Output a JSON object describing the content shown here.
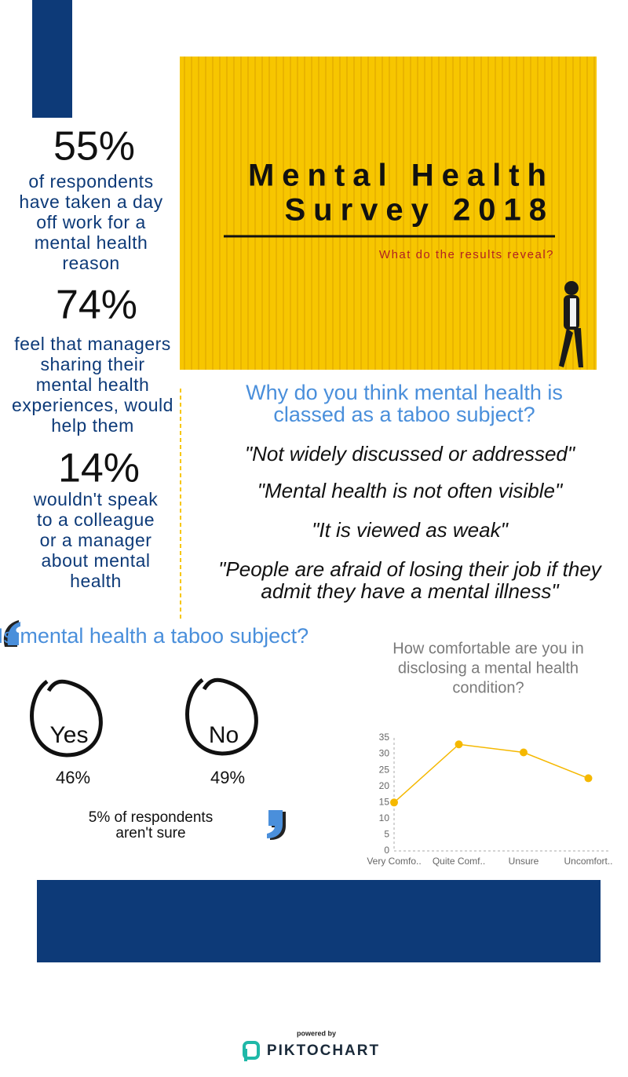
{
  "hero": {
    "title_lines": [
      "Mental Health",
      "Survey 2018"
    ],
    "subtitle": "What do the results reveal?"
  },
  "stats": [
    {
      "figure": "55%",
      "lines": [
        "of respondents",
        "have taken a day",
        "off work for a",
        "mental health",
        "reason"
      ]
    },
    {
      "figure": "74%",
      "lines": [
        "feel that managers",
        "sharing their",
        "mental health",
        "experiences, would",
        "help them"
      ]
    },
    {
      "figure": "14%",
      "lines": [
        "wouldn't speak",
        "to a colleague",
        "or a manager",
        "about mental",
        "health"
      ]
    }
  ],
  "taboo_reasons": {
    "question_lines": [
      "Why do you think mental health is",
      "classed as a taboo subject?"
    ],
    "quotes": [
      [
        "\"Not widely discussed or addressed\""
      ],
      [
        "\"Mental health is not often visible\""
      ],
      [
        "\"It is viewed as weak\""
      ],
      [
        "\"People are afraid of losing their job if they",
        "admit they have a mental illness\""
      ]
    ]
  },
  "taboo_poll": {
    "question_lines": [
      "Is mental health a taboo subject?"
    ],
    "answers": [
      {
        "label": "Yes",
        "percent": "46%"
      },
      {
        "label": "No",
        "percent": "49%"
      }
    ],
    "note_lines": [
      "5% of respondents",
      "aren't sure"
    ]
  },
  "chart_data": {
    "type": "line",
    "title_lines": [
      "How comfortable are you in",
      "disclosing a mental health",
      "condition?"
    ],
    "categories": [
      "Very Comfo..",
      "Quite Comf..",
      "Unsure",
      "Uncomfort.."
    ],
    "values": [
      15,
      33,
      30.5,
      22.5
    ],
    "color": "#f5b800",
    "ylim": [
      0,
      35
    ],
    "yticks": [
      0,
      5,
      10,
      15,
      20,
      25,
      30,
      35
    ],
    "grid": false
  },
  "footer": {
    "powered_by": "powered by",
    "brand": "PIKTOCHART"
  }
}
